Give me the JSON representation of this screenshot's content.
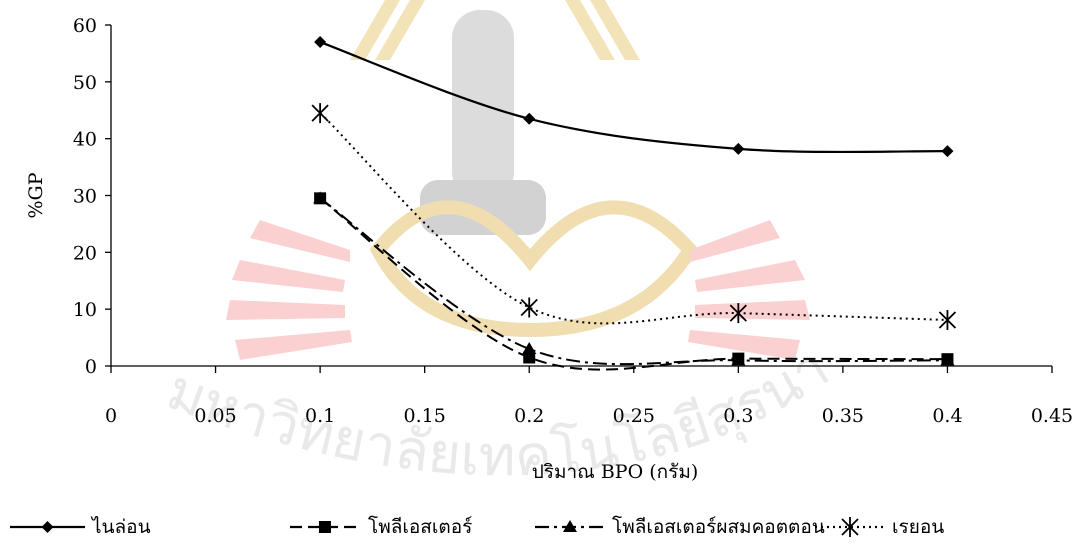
{
  "chart_data": {
    "type": "line",
    "title": "",
    "xlabel": "ปริมาณ BPO (กรัม)",
    "ylabel": "%GP",
    "xlim": [
      0,
      0.45
    ],
    "ylim": [
      0,
      60
    ],
    "xticks": [
      "0",
      "0.05",
      "0.1",
      "0.15",
      "0.2",
      "0.25",
      "0.3",
      "0.35",
      "0.4",
      "0.45"
    ],
    "yticks": [
      "0",
      "10",
      "20",
      "30",
      "40",
      "50",
      "60"
    ],
    "grid": false,
    "legend_position": "bottom",
    "series": [
      {
        "name": "ไนล่อน",
        "marker": "diamond",
        "line_style": "solid",
        "x": [
          0.1,
          0.2,
          0.3,
          0.4
        ],
        "y": [
          57.0,
          43.5,
          38.2,
          37.8
        ]
      },
      {
        "name": "โพลีเอสเตอร์",
        "marker": "square",
        "line_style": "dashed",
        "x": [
          0.1,
          0.2,
          0.3,
          0.4
        ],
        "y": [
          29.5,
          1.5,
          1.3,
          1.2
        ]
      },
      {
        "name": "โพลีเอสเตอร์ผสมคอตตอน",
        "marker": "triangle",
        "line_style": "dash-dot",
        "x": [
          0.1,
          0.2,
          0.3,
          0.4
        ],
        "y": [
          29.5,
          3.0,
          1.0,
          1.0
        ]
      },
      {
        "name": "เรยอน",
        "marker": "star",
        "line_style": "dotted",
        "x": [
          0.1,
          0.2,
          0.3,
          0.4
        ],
        "y": [
          44.5,
          10.3,
          9.3,
          8.1
        ]
      }
    ]
  },
  "watermark": {
    "text": "มหาวิทยาลัยเทคโนโลยีสุรนารี",
    "color": "#f08a8a",
    "accent": "#d8b84c"
  }
}
